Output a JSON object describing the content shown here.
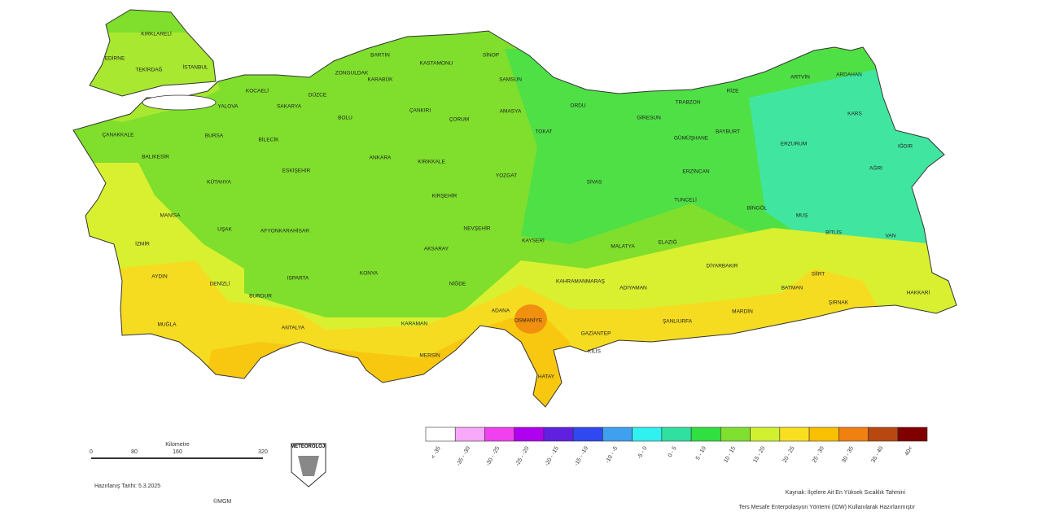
{
  "map": {
    "provinces": [
      "KIRKLARELİ",
      "EDİRNE",
      "TEKİRDAĞ",
      "İSTANBUL",
      "KOCAELİ",
      "YALOVA",
      "SAKARYA",
      "DÜZCE",
      "BOLU",
      "ZONGULDAK",
      "BARTIN",
      "KARABÜK",
      "KASTAMONU",
      "SİNOP",
      "SAMSUN",
      "ÇANKIRI",
      "ÇORUM",
      "AMASYA",
      "TOKAT",
      "ORDU",
      "GİRESUN",
      "TRABZON",
      "RİZE",
      "ARTVİN",
      "ARDAHAN",
      "KARS",
      "IĞDIR",
      "AĞRI",
      "ERZURUM",
      "BAYBURT",
      "GÜMÜŞHANE",
      "ERZİNCAN",
      "SİVAS",
      "TUNCELİ",
      "BİNGÖL",
      "MUŞ",
      "BİTLİS",
      "VAN",
      "HAKKARİ",
      "ŞIRNAK",
      "SİİRT",
      "BATMAN",
      "MARDİN",
      "DİYARBAKIR",
      "ELAZIĞ",
      "MALATYA",
      "ADIYAMAN",
      "ŞANLIURFA",
      "GAZİANTEP",
      "KİLİS",
      "HATAY",
      "OSMANİYE",
      "ADANA",
      "KAHRAMANMARAŞ",
      "KAYSERİ",
      "NİĞDE",
      "AKSARAY",
      "NEVŞEHİR",
      "KIRŞEHİR",
      "KIRIKKALE",
      "YOZGAT",
      "ANKARA",
      "ESKİŞEHİR",
      "BİLECİK",
      "BURSA",
      "BALIKESİR",
      "ÇANAKKALE",
      "MANİSA",
      "İZMİR",
      "AYDIN",
      "MUĞLA",
      "DENİZLİ",
      "UŞAK",
      "KÜTAHYA",
      "AFYONKARAHİSAR",
      "ISPARTA",
      "BURDUR",
      "ANTALYA",
      "KONYA",
      "KARAMAN",
      "MERSİN"
    ]
  },
  "legend": {
    "items": [
      {
        "label": "< -35",
        "color": "#ffffff"
      },
      {
        "label": "-35 - -30",
        "color": "#f8a8f8"
      },
      {
        "label": "-30 - -25",
        "color": "#f040f0"
      },
      {
        "label": "-25 - -20",
        "color": "#b000f0"
      },
      {
        "label": "-20 - -15",
        "color": "#6020e0"
      },
      {
        "label": "-15 - -10",
        "color": "#3048f0"
      },
      {
        "label": "-10 - -5",
        "color": "#40a0f0"
      },
      {
        "label": "-5 - 0",
        "color": "#30f0f0"
      },
      {
        "label": "0 - 5",
        "color": "#30e0a0"
      },
      {
        "label": "5 - 10",
        "color": "#30e040"
      },
      {
        "label": "10 - 15",
        "color": "#80e030"
      },
      {
        "label": "15 - 20",
        "color": "#d0f030"
      },
      {
        "label": "20 - 25",
        "color": "#f8e020"
      },
      {
        "label": "25 - 30",
        "color": "#f8c000"
      },
      {
        "label": "30 - 35",
        "color": "#f08010"
      },
      {
        "label": "35 - 40",
        "color": "#b84810"
      },
      {
        "label": "40<",
        "color": "#800000"
      }
    ]
  },
  "scale_bar": {
    "title": "Kilometre",
    "ticks": [
      "0",
      "80",
      "160",
      "320"
    ]
  },
  "logo": "METEOROLOJİ",
  "date": "Hazırlanış Tarihi: 5.3.2025",
  "copyright": "©MGM",
  "source": [
    "Kaynak: İlçelere Ait En Yüksek Sıcaklık Tahmini",
    "Ters Mesafe Enterpolasyon Yöntemi (IDW) Kullanılarak Hazırlanmıştır"
  ]
}
